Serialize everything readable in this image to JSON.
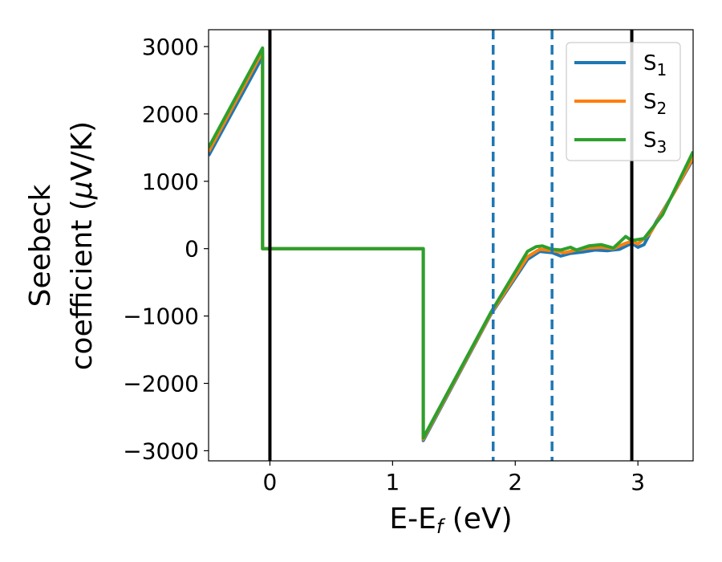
{
  "chart_data": {
    "type": "line",
    "xlabel": "E-E",
    "xlabel_sub": "f",
    "xlabel_unit": " (eV)",
    "ylabel_line1": "Seebeck",
    "ylabel_line2_a": "coefficient  (",
    "ylabel_mu": "μ",
    "ylabel_line2_b": "V/K)",
    "xlim": [
      -0.5,
      3.45
    ],
    "ylim": [
      -3150,
      3250
    ],
    "xticks": [
      0,
      1,
      2,
      3
    ],
    "xtick_labels": [
      "0",
      "1",
      "2",
      "3"
    ],
    "yticks": [
      -3000,
      -2000,
      -1000,
      0,
      1000,
      2000,
      3000
    ],
    "ytick_labels": [
      "−3000",
      "−2000",
      "−1000",
      "0",
      "1000",
      "2000",
      "3000"
    ],
    "grid": false,
    "legend_position": "top-right",
    "vlines": [
      {
        "x": 0.0,
        "style": "solid",
        "color": "#000000"
      },
      {
        "x": 2.95,
        "style": "solid",
        "color": "#000000"
      },
      {
        "x": 1.82,
        "style": "dashed",
        "color": "#1f77b4"
      },
      {
        "x": 2.3,
        "style": "dashed",
        "color": "#1f77b4"
      }
    ],
    "series": [
      {
        "name": "S",
        "sub": "1",
        "color": "#1f77b4",
        "points": [
          [
            -0.5,
            1380
          ],
          [
            -0.06,
            2850
          ],
          [
            -0.06,
            0
          ],
          [
            1.25,
            0
          ],
          [
            1.25,
            -2850
          ],
          [
            1.8,
            -980
          ],
          [
            2.1,
            -160
          ],
          [
            2.2,
            -40
          ],
          [
            2.3,
            -60
          ],
          [
            2.37,
            -110
          ],
          [
            2.45,
            -70
          ],
          [
            2.55,
            -50
          ],
          [
            2.65,
            -20
          ],
          [
            2.75,
            -30
          ],
          [
            2.85,
            -10
          ],
          [
            2.95,
            80
          ],
          [
            3.0,
            20
          ],
          [
            3.05,
            60
          ],
          [
            3.15,
            400
          ],
          [
            3.3,
            850
          ],
          [
            3.45,
            1330
          ]
        ]
      },
      {
        "name": "S",
        "sub": "2",
        "color": "#ff7f0e",
        "points": [
          [
            -0.5,
            1440
          ],
          [
            -0.06,
            2930
          ],
          [
            -0.06,
            0
          ],
          [
            1.25,
            0
          ],
          [
            1.25,
            -2830
          ],
          [
            1.8,
            -970
          ],
          [
            2.1,
            -120
          ],
          [
            2.2,
            -10
          ],
          [
            2.3,
            -30
          ],
          [
            2.4,
            -60
          ],
          [
            2.5,
            -20
          ],
          [
            2.6,
            10
          ],
          [
            2.7,
            20
          ],
          [
            2.8,
            0
          ],
          [
            2.9,
            80
          ],
          [
            2.95,
            110
          ],
          [
            3.0,
            70
          ],
          [
            3.1,
            230
          ],
          [
            3.3,
            850
          ],
          [
            3.45,
            1360
          ]
        ]
      },
      {
        "name": "S",
        "sub": "3",
        "color": "#2ca02c",
        "points": [
          [
            -0.5,
            1500
          ],
          [
            -0.06,
            2980
          ],
          [
            -0.06,
            0
          ],
          [
            1.25,
            0
          ],
          [
            1.25,
            -2810
          ],
          [
            1.8,
            -950
          ],
          [
            2.1,
            -40
          ],
          [
            2.17,
            30
          ],
          [
            2.22,
            40
          ],
          [
            2.3,
            -10
          ],
          [
            2.37,
            -20
          ],
          [
            2.45,
            20
          ],
          [
            2.5,
            -20
          ],
          [
            2.6,
            40
          ],
          [
            2.7,
            60
          ],
          [
            2.8,
            10
          ],
          [
            2.9,
            180
          ],
          [
            2.95,
            120
          ],
          [
            3.05,
            150
          ],
          [
            3.2,
            500
          ],
          [
            3.45,
            1440
          ]
        ]
      }
    ]
  }
}
